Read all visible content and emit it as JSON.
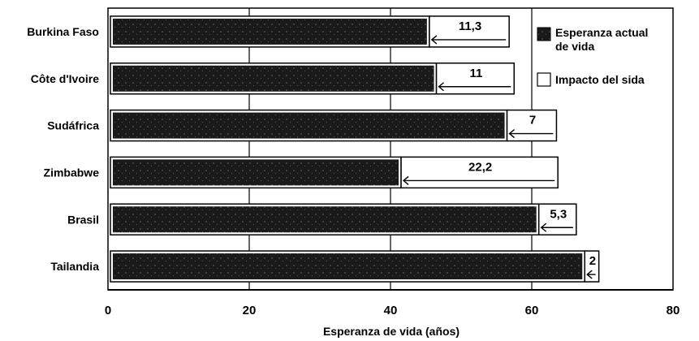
{
  "chart_data": {
    "type": "bar",
    "orientation": "horizontal",
    "stacked": true,
    "categories": [
      "Burkina Faso",
      "Côte d'Ivoire",
      "Sudáfrica",
      "Zimbabwe",
      "Brasil",
      "Tailandia"
    ],
    "series": [
      {
        "name": "Esperanza actual de vida",
        "values": [
          45.5,
          46.5,
          56.5,
          41.5,
          61.0,
          67.5
        ],
        "color": "#1a1a1a"
      },
      {
        "name": "Impacto del sida",
        "values": [
          11.3,
          11,
          7,
          22.2,
          5.3,
          2
        ],
        "color": "#ffffff"
      }
    ],
    "data_labels": [
      "11,3",
      "11",
      "7",
      "22,2",
      "5,3",
      "2"
    ],
    "xlabel": "Esperanza de vida (años)",
    "ylabel": "",
    "xlim": [
      0,
      80
    ],
    "xticks": [
      0,
      20,
      40,
      60,
      80
    ],
    "grid": true,
    "legend": {
      "position": "top-right",
      "items": [
        "Esperanza actual de vida",
        "Impacto del sida"
      ]
    }
  }
}
